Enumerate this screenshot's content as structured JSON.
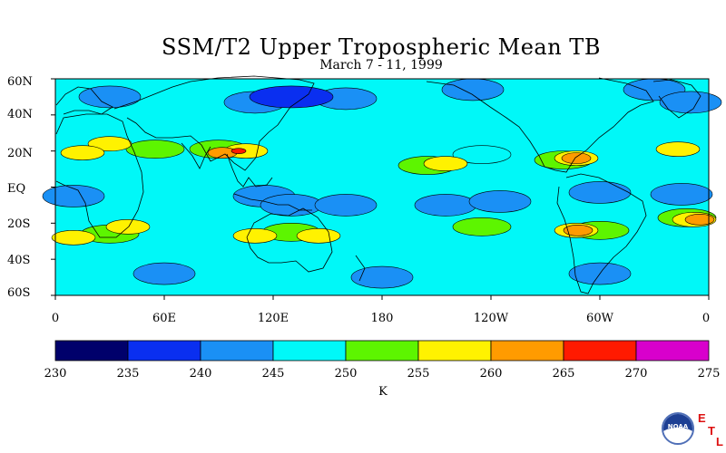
{
  "title": "SSM/T2 Upper Tropospheric Mean TB",
  "subtitle": "March 7 - 11, 1999",
  "latitude_labels": [
    "60N",
    "40N",
    "20N",
    "EQ",
    "20S",
    "40S",
    "60S"
  ],
  "longitude_labels": [
    "0",
    "60E",
    "120E",
    "180",
    "120W",
    "60W",
    "0"
  ],
  "colorbar": {
    "ticks": [
      "230",
      "235",
      "240",
      "245",
      "250",
      "255",
      "260",
      "265",
      "270",
      "275"
    ],
    "colors": [
      "#00006b",
      "#0a2ff0",
      "#1a90f5",
      "#00f8f8",
      "#5df500",
      "#fff200",
      "#ff9b00",
      "#ff1a00",
      "#d800cc"
    ],
    "units": "K"
  },
  "logo": {
    "noaa": "NOAA",
    "etl": [
      "E",
      "T",
      "L"
    ]
  },
  "chart_data": {
    "type": "heatmap",
    "title": "SSM/T2 Upper Tropospheric Mean TB",
    "subtitle": "March 7 - 11, 1999",
    "projection": "equirectangular",
    "lon_range": [
      0,
      360
    ],
    "lat_range": [
      -60,
      60
    ],
    "units": "K",
    "levels": [
      230,
      235,
      240,
      245,
      250,
      255,
      260,
      265,
      270,
      275
    ],
    "colors": [
      "#00006b",
      "#0a2ff0",
      "#1a90f5",
      "#00f8f8",
      "#5df500",
      "#fff200",
      "#ff9b00",
      "#ff1a00",
      "#d800cc"
    ],
    "background_level": 247.5,
    "features": [
      {
        "lon": 130,
        "lat": 50,
        "value": 237.5
      },
      {
        "lon": 110,
        "lat": 47,
        "value": 242.5
      },
      {
        "lon": 160,
        "lat": 49,
        "value": 242.5
      },
      {
        "lon": 30,
        "lat": 50,
        "value": 242.5
      },
      {
        "lon": 230,
        "lat": 54,
        "value": 242.5
      },
      {
        "lon": 330,
        "lat": 54,
        "value": 242.5
      },
      {
        "lon": 350,
        "lat": 47,
        "value": 242.5
      },
      {
        "lon": 55,
        "lat": 21,
        "value": 252.5
      },
      {
        "lon": 90,
        "lat": 21,
        "value": 252.5
      },
      {
        "lon": 30,
        "lat": 24,
        "value": 257.5
      },
      {
        "lon": 15,
        "lat": 19,
        "value": 257.5
      },
      {
        "lon": 105,
        "lat": 20,
        "value": 257.5
      },
      {
        "lon": 92,
        "lat": 19,
        "value": 262.5
      },
      {
        "lon": 101,
        "lat": 20,
        "value": 267.5
      },
      {
        "lon": 205,
        "lat": 12,
        "value": 252.5
      },
      {
        "lon": 215,
        "lat": 13,
        "value": 257.5
      },
      {
        "lon": 280,
        "lat": 15,
        "value": 252.5
      },
      {
        "lon": 287,
        "lat": 16,
        "value": 257.5
      },
      {
        "lon": 287,
        "lat": 16,
        "value": 262.5
      },
      {
        "lon": 343,
        "lat": 21,
        "value": 257.5
      },
      {
        "lon": 235,
        "lat": 18,
        "value": 247.5
      },
      {
        "lon": 10,
        "lat": -5,
        "value": 242.5
      },
      {
        "lon": 115,
        "lat": -5,
        "value": 242.5
      },
      {
        "lon": 130,
        "lat": -10,
        "value": 242.5
      },
      {
        "lon": 160,
        "lat": -10,
        "value": 242.5
      },
      {
        "lon": 215,
        "lat": -10,
        "value": 242.5
      },
      {
        "lon": 245,
        "lat": -8,
        "value": 242.5
      },
      {
        "lon": 300,
        "lat": -3,
        "value": 242.5
      },
      {
        "lon": 345,
        "lat": -4,
        "value": 242.5
      },
      {
        "lon": 30,
        "lat": -26,
        "value": 252.5
      },
      {
        "lon": 10,
        "lat": -28,
        "value": 257.5
      },
      {
        "lon": 40,
        "lat": -22,
        "value": 257.5
      },
      {
        "lon": 130,
        "lat": -25,
        "value": 252.5
      },
      {
        "lon": 145,
        "lat": -27,
        "value": 257.5
      },
      {
        "lon": 110,
        "lat": -27,
        "value": 257.5
      },
      {
        "lon": 235,
        "lat": -22,
        "value": 252.5
      },
      {
        "lon": 300,
        "lat": -24,
        "value": 252.5
      },
      {
        "lon": 287,
        "lat": -24,
        "value": 257.5
      },
      {
        "lon": 288,
        "lat": -24,
        "value": 262.5
      },
      {
        "lon": 348,
        "lat": -17,
        "value": 252.5
      },
      {
        "lon": 352,
        "lat": -18,
        "value": 257.5
      },
      {
        "lon": 355,
        "lat": -18,
        "value": 262.5
      },
      {
        "lon": 180,
        "lat": -50,
        "value": 242.5
      },
      {
        "lon": 60,
        "lat": -48,
        "value": 242.5
      },
      {
        "lon": 300,
        "lat": -48,
        "value": 242.5
      }
    ]
  }
}
